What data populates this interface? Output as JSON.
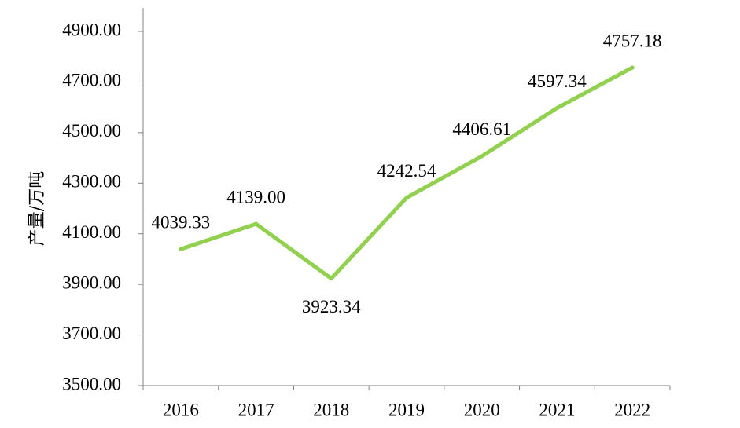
{
  "chart_data": {
    "type": "line",
    "title": "",
    "xlabel": "",
    "ylabel": "产量/万吨",
    "categories": [
      "2016",
      "2017",
      "2018",
      "2019",
      "2020",
      "2021",
      "2022"
    ],
    "series": [
      {
        "values": [
          4039.33,
          4139.0,
          3923.34,
          4242.54,
          4406.61,
          4597.34,
          4757.18
        ],
        "color": "#92D050"
      }
    ],
    "data_labels": [
      "4039.33",
      "4139.00",
      "3923.34",
      "4242.54",
      "4406.61",
      "4597.34",
      "4757.18"
    ],
    "ylim": [
      3500,
      4900
    ],
    "yticks": [
      3500,
      3700,
      3900,
      4100,
      4300,
      4500,
      4700,
      4900
    ],
    "ytick_labels": [
      "3500.00",
      "3700.00",
      "3900.00",
      "4100.00",
      "4300.00",
      "4500.00",
      "4700.00",
      "4900.00"
    ],
    "grid": false,
    "legend": "none"
  }
}
